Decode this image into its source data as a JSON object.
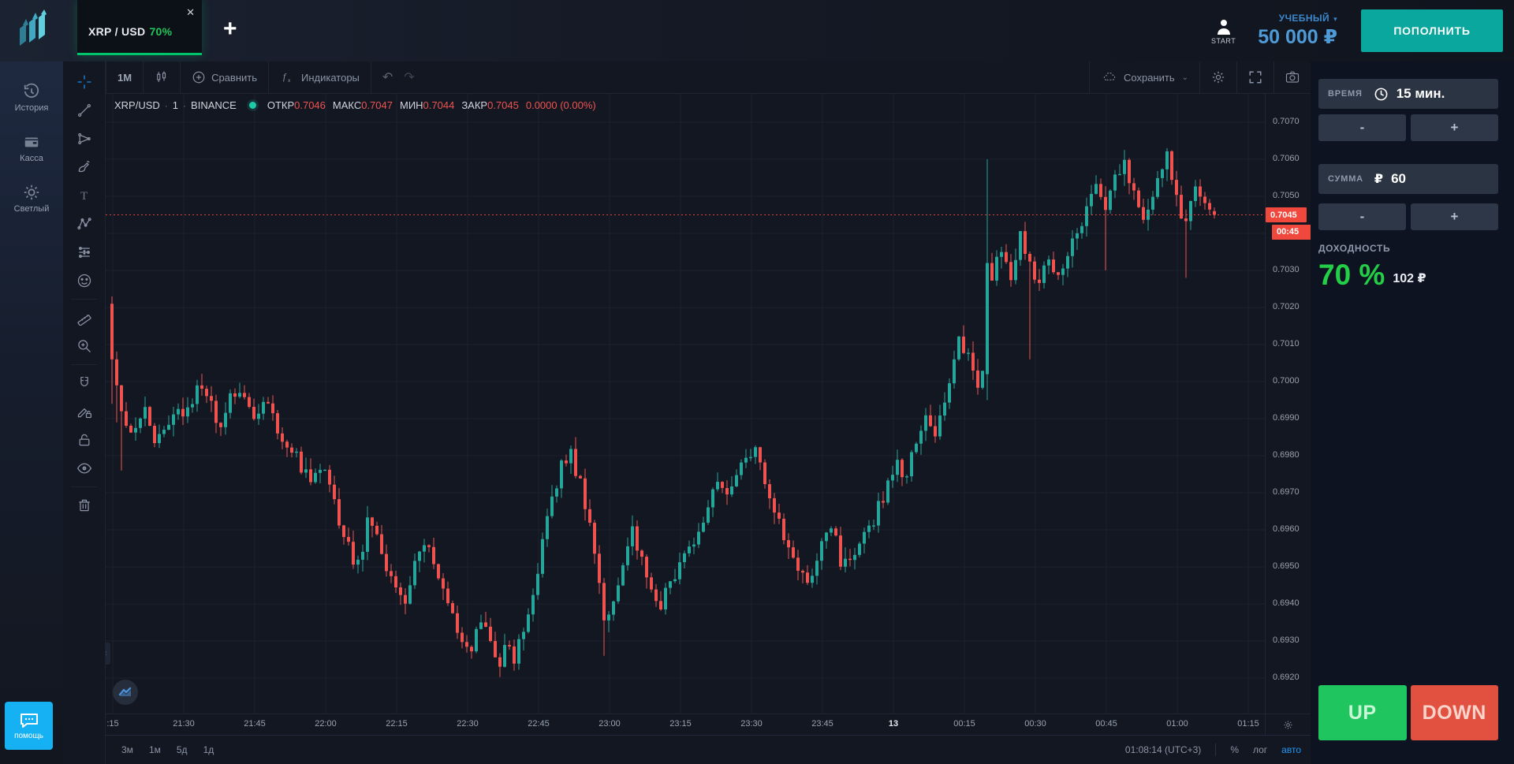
{
  "topbar": {
    "tab": {
      "symbol": "XRP / USD",
      "payout": "70%",
      "close_glyph": "✕"
    },
    "add_tab": "+",
    "start_label": "START",
    "account_type": "УЧЕБНЫЙ",
    "caret": "▾",
    "balance": "50 000 ₽",
    "deposit": "ПОПОЛНИТЬ"
  },
  "sidebar": {
    "items": [
      {
        "icon": "history-icon",
        "label": "История"
      },
      {
        "icon": "cashier-icon",
        "label": "Касса"
      },
      {
        "icon": "theme-icon",
        "label": "Светлый"
      }
    ],
    "help_label": "помощь"
  },
  "chart_toolbar": {
    "interval": "1М",
    "compare": "Сравнить",
    "indicators": "Индикаторы",
    "undo_glyph": "↶",
    "redo_glyph": "↷",
    "save": "Сохранить",
    "save_caret": "⌄"
  },
  "draw_tools": [
    "crosshair",
    "trend-line",
    "fib",
    "brush",
    "text",
    "xabcd",
    "position",
    "smiley",
    "ruler",
    "zoom-in",
    "magnet",
    "draw-lock",
    "lock",
    "eye",
    "trash"
  ],
  "draw_tool_groups": [
    8,
    10,
    14
  ],
  "legend": {
    "symbol": "XRP/USD",
    "sep": "·",
    "interval": "1",
    "exchange": "BINANCE",
    "fields": [
      {
        "label": "ОТКР",
        "value": "0.7046"
      },
      {
        "label": "МАКС",
        "value": "0.7047"
      },
      {
        "label": "МИН",
        "value": "0.7044"
      },
      {
        "label": "ЗАКР",
        "value": "0.7045"
      }
    ],
    "change": "0.0000 (0.00%)"
  },
  "price_axis": {
    "top_price": 0.707,
    "tick_step": 0.001,
    "tick_count": 16,
    "hidden_tick": "0.7040",
    "current_label": "0.7045",
    "countdown": "00:45"
  },
  "time_axis": {
    "labels": [
      ":15",
      "21:30",
      "21:45",
      "22:00",
      "22:15",
      "22:30",
      "22:45",
      "23:00",
      "23:15",
      "23:30",
      "23:45",
      "13",
      "00:15",
      "00:30",
      "00:45",
      "01:00",
      "01:15"
    ],
    "highlight": "13"
  },
  "bottom_bar": {
    "ranges": [
      "3м",
      "1м",
      "5д",
      "1д"
    ],
    "clock": "01:08:14 (UTC+3)",
    "percent": "%",
    "log": "лог",
    "auto": "авто"
  },
  "right_panel": {
    "time_label": "ВРЕМЯ",
    "time_value": "15 мин.",
    "minus": "-",
    "plus": "+",
    "amount_label": "СУММА",
    "currency": "₽",
    "amount_value": "60",
    "payout_label": "ДОХОДНОСТЬ",
    "payout_percent": "70 %",
    "payout_amount": "102 ₽",
    "up": "UP",
    "down": "DOWN"
  },
  "colors": {
    "candle_up": "#26a69a",
    "candle_down": "#ef5350",
    "grid": "#1c2230",
    "price_line": "#f0483c",
    "accent_green": "#00c46a",
    "accent_blue": "#2196f3",
    "deposit_teal": "#0aa79f",
    "balance_blue": "#4e9bd8",
    "help_blue": "#15b1f2",
    "up_button": "#1fc55e",
    "down_button": "#e2513f"
  },
  "chart_data": {
    "type": "candlestick",
    "symbol": "XRP/USD",
    "exchange": "BINANCE",
    "interval": "1m",
    "axis_top_price": 0.707,
    "axis_bottom_price": 0.692,
    "current_price": 0.7045,
    "candle_count": 234,
    "anchors": [
      [
        0,
        0.7021
      ],
      [
        1,
        0.6999
      ],
      [
        3,
        0.699
      ],
      [
        5,
        0.6986
      ],
      [
        7,
        0.6994
      ],
      [
        9,
        0.6983
      ],
      [
        11,
        0.6987
      ],
      [
        13,
        0.6993
      ],
      [
        15,
        0.699
      ],
      [
        17,
        0.6995
      ],
      [
        19,
        0.6999
      ],
      [
        21,
        0.6993
      ],
      [
        23,
        0.6988
      ],
      [
        25,
        0.6995
      ],
      [
        27,
        0.6998
      ],
      [
        30,
        0.699
      ],
      [
        33,
        0.6994
      ],
      [
        36,
        0.6985
      ],
      [
        39,
        0.698
      ],
      [
        42,
        0.6972
      ],
      [
        45,
        0.6978
      ],
      [
        48,
        0.6963
      ],
      [
        50,
        0.6955
      ],
      [
        52,
        0.695
      ],
      [
        54,
        0.6962
      ],
      [
        56,
        0.6958
      ],
      [
        58,
        0.695
      ],
      [
        60,
        0.6945
      ],
      [
        62,
        0.694
      ],
      [
        64,
        0.6952
      ],
      [
        66,
        0.6957
      ],
      [
        68,
        0.695
      ],
      [
        70,
        0.6945
      ],
      [
        72,
        0.6938
      ],
      [
        74,
        0.693
      ],
      [
        76,
        0.6928
      ],
      [
        78,
        0.6935
      ],
      [
        80,
        0.693
      ],
      [
        82,
        0.6925
      ],
      [
        84,
        0.6929
      ],
      [
        85,
        0.6924
      ],
      [
        87,
        0.6934
      ],
      [
        89,
        0.6944
      ],
      [
        91,
        0.6956
      ],
      [
        93,
        0.6968
      ],
      [
        95,
        0.6978
      ],
      [
        97,
        0.698
      ],
      [
        99,
        0.6972
      ],
      [
        101,
        0.696
      ],
      [
        103,
        0.6944
      ],
      [
        104,
        0.6934
      ],
      [
        106,
        0.6942
      ],
      [
        108,
        0.6952
      ],
      [
        110,
        0.696
      ],
      [
        112,
        0.6952
      ],
      [
        114,
        0.6945
      ],
      [
        116,
        0.694
      ],
      [
        118,
        0.6946
      ],
      [
        120,
        0.695
      ],
      [
        122,
        0.6956
      ],
      [
        124,
        0.696
      ],
      [
        126,
        0.6966
      ],
      [
        128,
        0.6972
      ],
      [
        130,
        0.6968
      ],
      [
        132,
        0.6975
      ],
      [
        134,
        0.6981
      ],
      [
        136,
        0.6982
      ],
      [
        138,
        0.6974
      ],
      [
        140,
        0.6966
      ],
      [
        142,
        0.6958
      ],
      [
        144,
        0.6952
      ],
      [
        146,
        0.6948
      ],
      [
        148,
        0.6946
      ],
      [
        150,
        0.6955
      ],
      [
        152,
        0.6962
      ],
      [
        154,
        0.6952
      ],
      [
        156,
        0.695
      ],
      [
        158,
        0.6956
      ],
      [
        160,
        0.696
      ],
      [
        162,
        0.6966
      ],
      [
        164,
        0.6972
      ],
      [
        166,
        0.6978
      ],
      [
        168,
        0.6974
      ],
      [
        170,
        0.6984
      ],
      [
        172,
        0.699
      ],
      [
        174,
        0.6987
      ],
      [
        176,
        0.6996
      ],
      [
        178,
        0.7006
      ],
      [
        179,
        0.7012
      ],
      [
        181,
        0.7006
      ],
      [
        183,
        0.7
      ],
      [
        184,
        0.7002
      ],
      [
        185,
        0.7032
      ],
      [
        186,
        0.7028
      ],
      [
        188,
        0.7036
      ],
      [
        190,
        0.7028
      ],
      [
        192,
        0.704
      ],
      [
        194,
        0.7032
      ],
      [
        196,
        0.7027
      ],
      [
        198,
        0.7034
      ],
      [
        200,
        0.7029
      ],
      [
        202,
        0.7033
      ],
      [
        204,
        0.7041
      ],
      [
        206,
        0.7046
      ],
      [
        208,
        0.7052
      ],
      [
        210,
        0.7047
      ],
      [
        212,
        0.7054
      ],
      [
        214,
        0.7058
      ],
      [
        216,
        0.705
      ],
      [
        218,
        0.7043
      ],
      [
        220,
        0.7051
      ],
      [
        222,
        0.7058
      ],
      [
        223,
        0.7061
      ],
      [
        225,
        0.7049
      ],
      [
        227,
        0.7043
      ],
      [
        229,
        0.7051
      ],
      [
        231,
        0.7049
      ],
      [
        233,
        0.7045
      ]
    ],
    "overrides": {
      "0": {
        "o": 0.7021,
        "h": 0.7023,
        "c": 0.7006,
        "l": 0.6994
      },
      "1": {
        "c": 0.6999,
        "l": 0.6989
      },
      "2": {
        "c": 0.6992,
        "l": 0.6976
      },
      "85": {
        "l": 0.6922
      },
      "104": {
        "l": 0.6926
      },
      "185": {
        "o": 0.7002,
        "c": 0.7032,
        "h": 0.706,
        "l": 0.6995
      },
      "194": {
        "l": 0.7006
      },
      "210": {
        "l": 0.703
      },
      "223": {
        "h": 0.7063
      },
      "227": {
        "l": 0.7028
      },
      "233": {
        "o": 0.7046,
        "h": 0.7047,
        "l": 0.7044,
        "c": 0.7045
      }
    }
  }
}
